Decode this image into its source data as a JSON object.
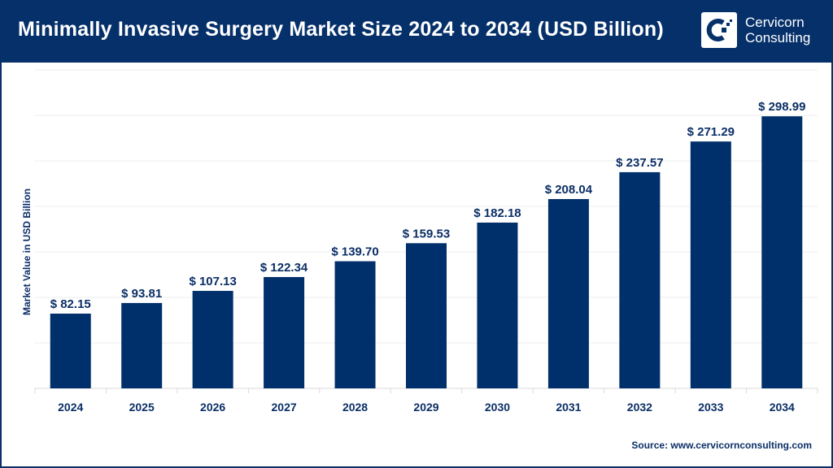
{
  "header": {
    "title": "Minimally Invasive Surgery Market Size 2024 to 2034 (USD Billion)"
  },
  "logo": {
    "line1": "Cervicorn",
    "line2": "Consulting"
  },
  "source": "Source: www.cervicornconsulting.com",
  "colors": {
    "header": "#05306a",
    "bar": "#00306b",
    "text": "#0b2f66"
  },
  "chart_data": {
    "type": "bar",
    "title": "Minimally Invasive Surgery Market Size 2024 to 2034 (USD Billion)",
    "xlabel": "",
    "ylabel": "Market Value in USD Billion",
    "categories": [
      "2024",
      "2025",
      "2026",
      "2027",
      "2028",
      "2029",
      "2030",
      "2031",
      "2032",
      "2033",
      "2034"
    ],
    "values": [
      82.15,
      93.81,
      107.13,
      122.34,
      139.7,
      159.53,
      182.18,
      208.04,
      237.57,
      271.29,
      298.99
    ],
    "labels": [
      "$ 82.15",
      "$ 93.81",
      "$ 107.13",
      "$ 122.34",
      "$ 139.70",
      "$ 159.53",
      "$ 182.18",
      "$ 208.04",
      "$ 237.57",
      "$ 271.29",
      "$ 298.99"
    ],
    "ylim": [
      0,
      350
    ],
    "grid": true,
    "ytick_step": 50,
    "ytick_labels_shown": false,
    "legend": "none"
  }
}
